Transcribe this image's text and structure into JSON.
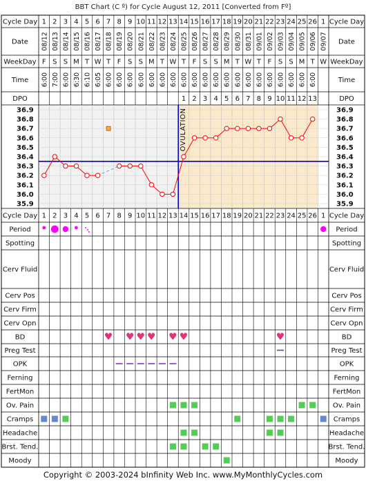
{
  "title": "BBT Chart (C º) for Cycle August 12, 2011  [Converted from Fº]",
  "footer": "Copyright © 2003-2024 bInfinity Web Inc.     www.MyMonthlyCycles.com",
  "ovulation_label": "OVULATION",
  "row_labels": {
    "cycle_day": "Cycle Day",
    "date": "Date",
    "weekday": "WeekDay",
    "time": "Time",
    "dpo": "DPO",
    "period": "Period",
    "spotting": "Spotting",
    "cerv_fluid": "Cerv Fluid",
    "cerv_pos": "Cerv Pos",
    "cerv_firm": "Cerv Firm",
    "cerv_opn": "Cerv Opn",
    "bd": "BD",
    "preg_test": "Preg Test",
    "opk": "OPK",
    "ferning": "Ferning",
    "fertmon": "FertMon",
    "ov_pain": "Ov. Pain",
    "cramps": "Cramps",
    "headache": "Headache",
    "brst_tend": "Brst. Tend.",
    "moody": "Moody"
  },
  "cycle_days": [
    "1",
    "2",
    "3",
    "4",
    "5",
    "6",
    "7",
    "8",
    "9",
    "10",
    "11",
    "12",
    "13",
    "14",
    "15",
    "16",
    "17",
    "18",
    "19",
    "20",
    "21",
    "22",
    "23",
    "24",
    "25",
    "26",
    "1"
  ],
  "dates": [
    "08/12",
    "08/13",
    "08/14",
    "08/15",
    "08/16",
    "08/17",
    "08/18",
    "08/19",
    "08/20",
    "08/21",
    "08/22",
    "08/23",
    "08/24",
    "08/25",
    "08/26",
    "08/27",
    "08/28",
    "08/29",
    "08/30",
    "08/31",
    "09/01",
    "09/02",
    "09/03",
    "09/04",
    "09/05",
    "09/06",
    "09/07"
  ],
  "weekdays": [
    "F",
    "S",
    "S",
    "M",
    "T",
    "W",
    "T",
    "F",
    "S",
    "S",
    "M",
    "T",
    "W",
    "T",
    "F",
    "S",
    "S",
    "M",
    "T",
    "W",
    "T",
    "F",
    "S",
    "S",
    "M",
    "T",
    "W"
  ],
  "times": [
    "6:00",
    "7:00",
    "6:00",
    "6:30",
    "6:10",
    "6:05",
    "6:00",
    "6:00",
    "6:00",
    "6:00",
    "6:00",
    "6:00",
    "6:00",
    "6:00",
    "6:00",
    "6:00",
    "6:00",
    "6:00",
    "6:00",
    "6:00",
    "6:00",
    "6:00",
    "6:00",
    "6:00",
    "6:00",
    "6:00",
    ""
  ],
  "dpo": [
    "",
    "",
    "",
    "",
    "",
    "",
    "",
    "",
    "",
    "",
    "",
    "",
    "",
    "1",
    "2",
    "3",
    "4",
    "5",
    "6",
    "7",
    "8",
    "9",
    "10",
    "11",
    "12",
    "13",
    ""
  ],
  "colors": {
    "temp_line": "#ff0000",
    "period_dot": "#ff00ff",
    "coverline": "#0000cc",
    "ovulation_line": "#0000cc",
    "luteal_shade": "#fbe9cc",
    "follicular_shade": "#f2f2f2",
    "symptom_green": "#55cc55",
    "cramps_blue": "#6688cc",
    "bd_heart": "#e0337a",
    "opk_line": "#8833cc",
    "preg_line": "#6633cc"
  },
  "chart_data": {
    "type": "line",
    "ylabel": "",
    "ylim": [
      35.9,
      36.9
    ],
    "y_ticks": [
      "36.9",
      "36.8",
      "36.7",
      "36.6",
      "36.5",
      "36.4",
      "36.3",
      "36.2",
      "36.1",
      "36.0",
      "35.9"
    ],
    "coverline": 36.35,
    "ovulation_day": 13,
    "series": [
      {
        "x": [
          1,
          2,
          3,
          4,
          5,
          6,
          8,
          9,
          10,
          11,
          12,
          13,
          14,
          15,
          16,
          17,
          18,
          19,
          20,
          21,
          22,
          23,
          24,
          25,
          26
        ],
        "values": [
          36.2,
          36.4,
          36.3,
          36.3,
          36.2,
          36.2,
          36.3,
          36.3,
          36.3,
          36.1,
          36.0,
          36.0,
          36.4,
          36.6,
          36.6,
          36.6,
          36.7,
          36.7,
          36.7,
          36.7,
          36.7,
          36.8,
          36.6,
          36.6,
          36.8
        ]
      }
    ],
    "discarded_point": {
      "x": 7,
      "value": 36.7
    }
  },
  "markers": {
    "period": [
      {
        "day": 1,
        "size": "small"
      },
      {
        "day": 2,
        "size": "large"
      },
      {
        "day": 3,
        "size": "medium"
      },
      {
        "day": 4,
        "size": "small"
      },
      {
        "day": 5,
        "size": "spot"
      },
      {
        "day": 27,
        "size": "medium"
      }
    ],
    "bd": [
      7,
      9,
      10,
      11,
      13,
      14,
      23
    ],
    "preg_test": [
      23
    ],
    "opk": [
      8,
      9,
      10,
      11,
      12,
      13
    ],
    "ov_pain": [
      13,
      14,
      15,
      25,
      26
    ],
    "cramps": [
      1,
      2,
      3,
      19,
      22,
      23,
      24,
      27
    ],
    "headache": [
      14,
      15,
      22,
      23
    ],
    "brst_tend": [
      13,
      14,
      16,
      17
    ],
    "moody": [
      18
    ]
  }
}
